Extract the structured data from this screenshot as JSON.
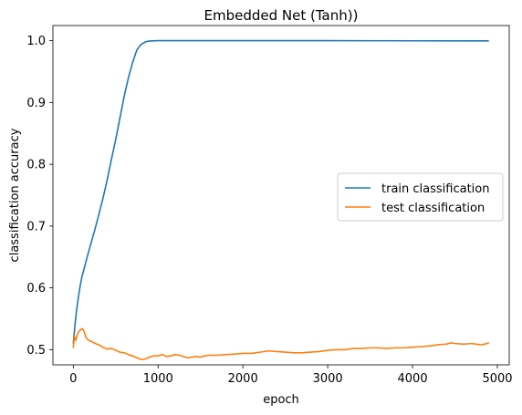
{
  "chart_data": {
    "type": "line",
    "title": "Embedded Net (Tanh))",
    "xlabel": "epoch",
    "ylabel": "classification accuracy",
    "xlim": [
      -240,
      5140
    ],
    "ylim": [
      0.4755,
      1.0245
    ],
    "xticks": [
      0,
      1000,
      2000,
      3000,
      4000,
      5000
    ],
    "xtick_labels": [
      "0",
      "1000",
      "2000",
      "3000",
      "4000",
      "5000"
    ],
    "yticks": [
      0.5,
      0.6,
      0.7,
      0.8,
      0.9,
      1.0
    ],
    "ytick_labels": [
      "0.5",
      "0.6",
      "0.7",
      "0.8",
      "0.9",
      "1.0"
    ],
    "grid": false,
    "legend_position": "center-right",
    "series": [
      {
        "name": "train classification",
        "color": "#1f77b4",
        "points": [
          [
            0,
            0.51
          ],
          [
            20,
            0.54
          ],
          [
            40,
            0.565
          ],
          [
            60,
            0.585
          ],
          [
            80,
            0.602
          ],
          [
            100,
            0.617
          ],
          [
            130,
            0.632
          ],
          [
            160,
            0.648
          ],
          [
            200,
            0.668
          ],
          [
            250,
            0.692
          ],
          [
            300,
            0.718
          ],
          [
            350,
            0.745
          ],
          [
            400,
            0.775
          ],
          [
            450,
            0.808
          ],
          [
            500,
            0.84
          ],
          [
            550,
            0.875
          ],
          [
            600,
            0.91
          ],
          [
            650,
            0.94
          ],
          [
            700,
            0.965
          ],
          [
            750,
            0.985
          ],
          [
            800,
            0.994
          ],
          [
            850,
            0.998
          ],
          [
            900,
            0.9995
          ],
          [
            1000,
            1.0
          ],
          [
            2000,
            1.0
          ],
          [
            3000,
            1.0
          ],
          [
            4000,
            0.9998
          ],
          [
            4900,
            0.9997
          ]
        ]
      },
      {
        "name": "test classification",
        "color": "#ff7f0e",
        "points": [
          [
            0,
            0.503
          ],
          [
            15,
            0.522
          ],
          [
            30,
            0.515
          ],
          [
            50,
            0.526
          ],
          [
            70,
            0.53
          ],
          [
            90,
            0.533
          ],
          [
            110,
            0.534
          ],
          [
            130,
            0.529
          ],
          [
            150,
            0.52
          ],
          [
            180,
            0.515
          ],
          [
            220,
            0.513
          ],
          [
            260,
            0.51
          ],
          [
            300,
            0.508
          ],
          [
            350,
            0.504
          ],
          [
            400,
            0.501
          ],
          [
            450,
            0.502
          ],
          [
            500,
            0.499
          ],
          [
            550,
            0.496
          ],
          [
            600,
            0.495
          ],
          [
            650,
            0.492
          ],
          [
            700,
            0.49
          ],
          [
            750,
            0.487
          ],
          [
            800,
            0.484
          ],
          [
            850,
            0.485
          ],
          [
            900,
            0.488
          ],
          [
            950,
            0.49
          ],
          [
            1000,
            0.49
          ],
          [
            1050,
            0.492
          ],
          [
            1100,
            0.489
          ],
          [
            1150,
            0.49
          ],
          [
            1200,
            0.492
          ],
          [
            1250,
            0.491
          ],
          [
            1300,
            0.489
          ],
          [
            1350,
            0.487
          ],
          [
            1400,
            0.488
          ],
          [
            1450,
            0.489
          ],
          [
            1500,
            0.488
          ],
          [
            1550,
            0.49
          ],
          [
            1600,
            0.491
          ],
          [
            1700,
            0.491
          ],
          [
            1800,
            0.492
          ],
          [
            1900,
            0.493
          ],
          [
            2000,
            0.494
          ],
          [
            2100,
            0.494
          ],
          [
            2200,
            0.496
          ],
          [
            2300,
            0.498
          ],
          [
            2400,
            0.497
          ],
          [
            2500,
            0.496
          ],
          [
            2600,
            0.495
          ],
          [
            2700,
            0.495
          ],
          [
            2800,
            0.496
          ],
          [
            2900,
            0.497
          ],
          [
            3000,
            0.499
          ],
          [
            3100,
            0.5
          ],
          [
            3200,
            0.5
          ],
          [
            3300,
            0.502
          ],
          [
            3400,
            0.502
          ],
          [
            3500,
            0.503
          ],
          [
            3600,
            0.503
          ],
          [
            3700,
            0.502
          ],
          [
            3800,
            0.503
          ],
          [
            3900,
            0.503
          ],
          [
            4000,
            0.504
          ],
          [
            4100,
            0.505
          ],
          [
            4200,
            0.506
          ],
          [
            4300,
            0.508
          ],
          [
            4400,
            0.509
          ],
          [
            4450,
            0.511
          ],
          [
            4500,
            0.51
          ],
          [
            4600,
            0.509
          ],
          [
            4700,
            0.51
          ],
          [
            4750,
            0.509
          ],
          [
            4800,
            0.508
          ],
          [
            4850,
            0.509
          ],
          [
            4900,
            0.511
          ]
        ]
      }
    ]
  }
}
